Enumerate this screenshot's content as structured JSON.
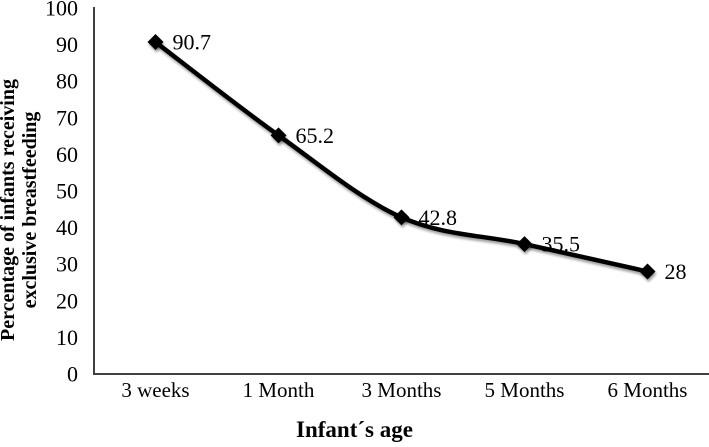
{
  "chart_data": {
    "type": "line",
    "title": "",
    "categories": [
      "3 weeks",
      "1 Month",
      "3 Months",
      "5 Months",
      "6 Months"
    ],
    "series": [
      {
        "name": "Percentage of infants receiving exclusive breastfeeding",
        "values": [
          90.7,
          65.2,
          42.8,
          35.5,
          28
        ],
        "point_labels": [
          "90.7",
          "65.2",
          "42.8",
          "35.5",
          "28"
        ]
      }
    ],
    "xlabel": "Infant´s age",
    "ylabel": "Percentage of infants receiving exclusive breastfeeding",
    "ylabel_lines": [
      "Percentage of infants receiving",
      "exclusive breastfeeding"
    ],
    "ylim": [
      0,
      100
    ],
    "yticks": [
      0,
      10,
      20,
      30,
      40,
      50,
      60,
      70,
      80,
      90,
      100
    ],
    "grid": false,
    "legend": "none",
    "smooth": true,
    "marker": "diamond",
    "line_color": "#000000",
    "marker_color": "#000000",
    "axis_color": "#404040",
    "text_color": "#000000"
  }
}
